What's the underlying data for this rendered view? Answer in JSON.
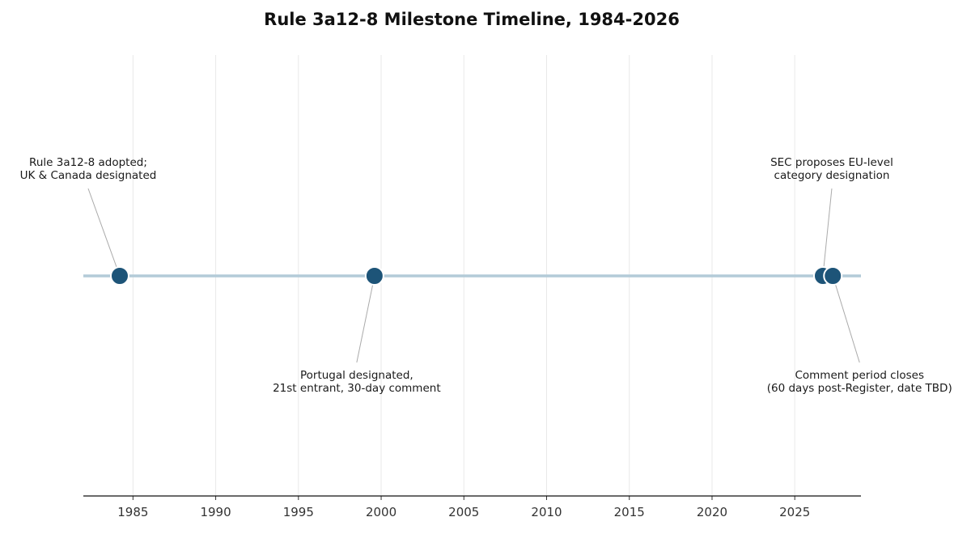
{
  "chart_data": {
    "type": "timeline",
    "title": "Rule 3a12-8 Milestone Timeline, 1984-2026",
    "xlabel": "",
    "ylabel": "",
    "xlim": [
      1982.0,
      2029.0
    ],
    "x_ticks": [
      1985,
      1990,
      1995,
      2000,
      2005,
      2010,
      2015,
      2020,
      2025
    ],
    "grid": "vertical",
    "events": [
      {
        "x": 1984.2,
        "label_lines": [
          "Rule 3a12-8 adopted;",
          "UK & Canada designated"
        ],
        "label_position": "above"
      },
      {
        "x": 1999.6,
        "label_lines": [
          "Portugal designated,",
          "21st entrant, 30-day comment"
        ],
        "label_position": "below"
      },
      {
        "x": 2026.7,
        "label_lines": [
          "SEC proposes EU-level",
          "category designation"
        ],
        "label_position": "above"
      },
      {
        "x": 2027.3,
        "label_lines": [
          "Comment period closes",
          "(60 days post-Register, date TBD)"
        ],
        "label_position": "below"
      }
    ],
    "colors": {
      "marker": "#1d5478",
      "timeline": "#b3cbd8",
      "leader": "#aaaaaa",
      "axis": "#111111",
      "grid": "#e9e9e9"
    }
  }
}
